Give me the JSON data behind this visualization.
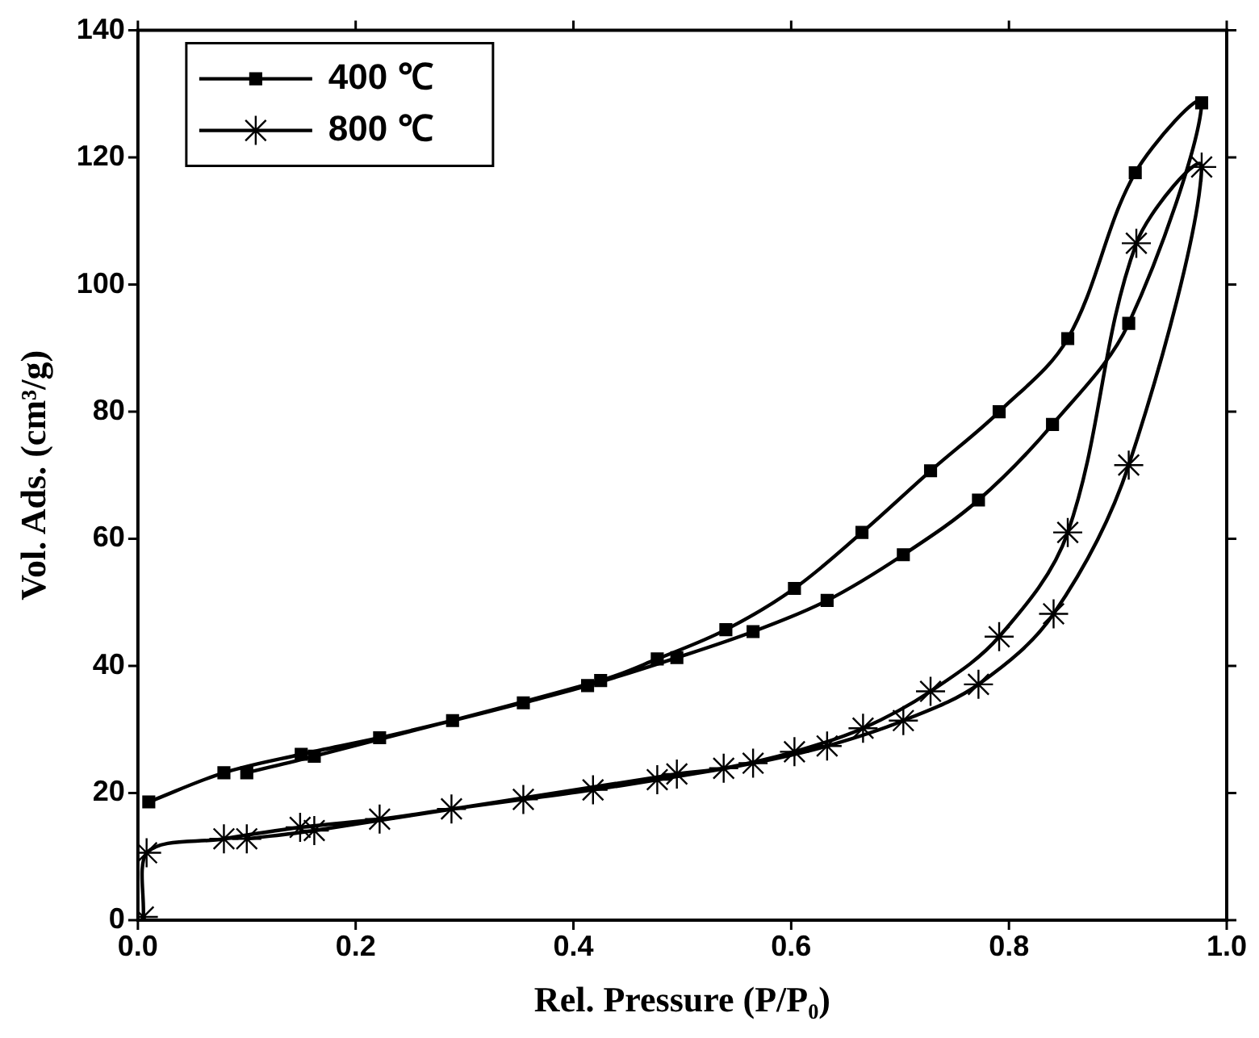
{
  "chart_data": {
    "type": "line",
    "xlabel": "Rel. Pressure (P/P₀)",
    "ylabel": "Vol. Ads. (cm³/g)",
    "xlim": [
      0,
      1
    ],
    "xticks": [
      {
        "value": 0,
        "label": "0.0"
      },
      {
        "value": 0.2,
        "label": "0.2"
      },
      {
        "value": 0.4,
        "label": "0.4"
      },
      {
        "value": 0.6,
        "label": "0.6"
      },
      {
        "value": 0.8,
        "label": "0.8"
      },
      {
        "value": 1,
        "label": "1.0"
      }
    ],
    "ylim": [
      0,
      140
    ],
    "yticks": [
      0,
      20,
      40,
      60,
      80,
      100,
      120,
      140
    ],
    "grid": false,
    "legend": "top left",
    "line_style": "solid",
    "series": [
      {
        "name": "400 ℃",
        "color": "#000000",
        "marker": "square",
        "x": [
          0.01,
          0.079,
          0.15,
          0.222,
          0.289,
          0.354,
          0.413,
          0.495,
          0.565,
          0.633,
          0.703,
          0.772,
          0.84,
          0.91,
          0.977,
          0.916,
          0.854,
          0.791,
          0.728,
          0.665,
          0.603,
          0.54,
          0.477,
          0.425,
          0.162,
          0.1
        ],
        "values": [
          18.6,
          23.2,
          26.1,
          28.7,
          31.4,
          34.2,
          36.9,
          41.3,
          45.4,
          50.3,
          57.5,
          66.1,
          78,
          93.9,
          128.6,
          117.6,
          91.5,
          80,
          70.7,
          61,
          52.2,
          45.7,
          41.1,
          37.7,
          25.8,
          23.2
        ]
      },
      {
        "name": "800 ℃",
        "color": "#000000",
        "marker": "cross",
        "x": [
          0.005,
          0.008,
          0.079,
          0.149,
          0.222,
          0.288,
          0.354,
          0.418,
          0.477,
          0.565,
          0.633,
          0.703,
          0.772,
          0.841,
          0.91,
          0.977,
          0.917,
          0.854,
          0.791,
          0.728,
          0.666,
          0.603,
          0.538,
          0.495,
          0.162,
          0.1
        ],
        "values": [
          0.5,
          10.6,
          12.8,
          14.6,
          15.9,
          17.5,
          19,
          20.5,
          22.1,
          24.7,
          27.4,
          31.4,
          37.1,
          48.2,
          71.6,
          118.5,
          106.5,
          61,
          44.6,
          36,
          30.2,
          26.5,
          23.9,
          23,
          14.1,
          12.8
        ]
      }
    ]
  }
}
